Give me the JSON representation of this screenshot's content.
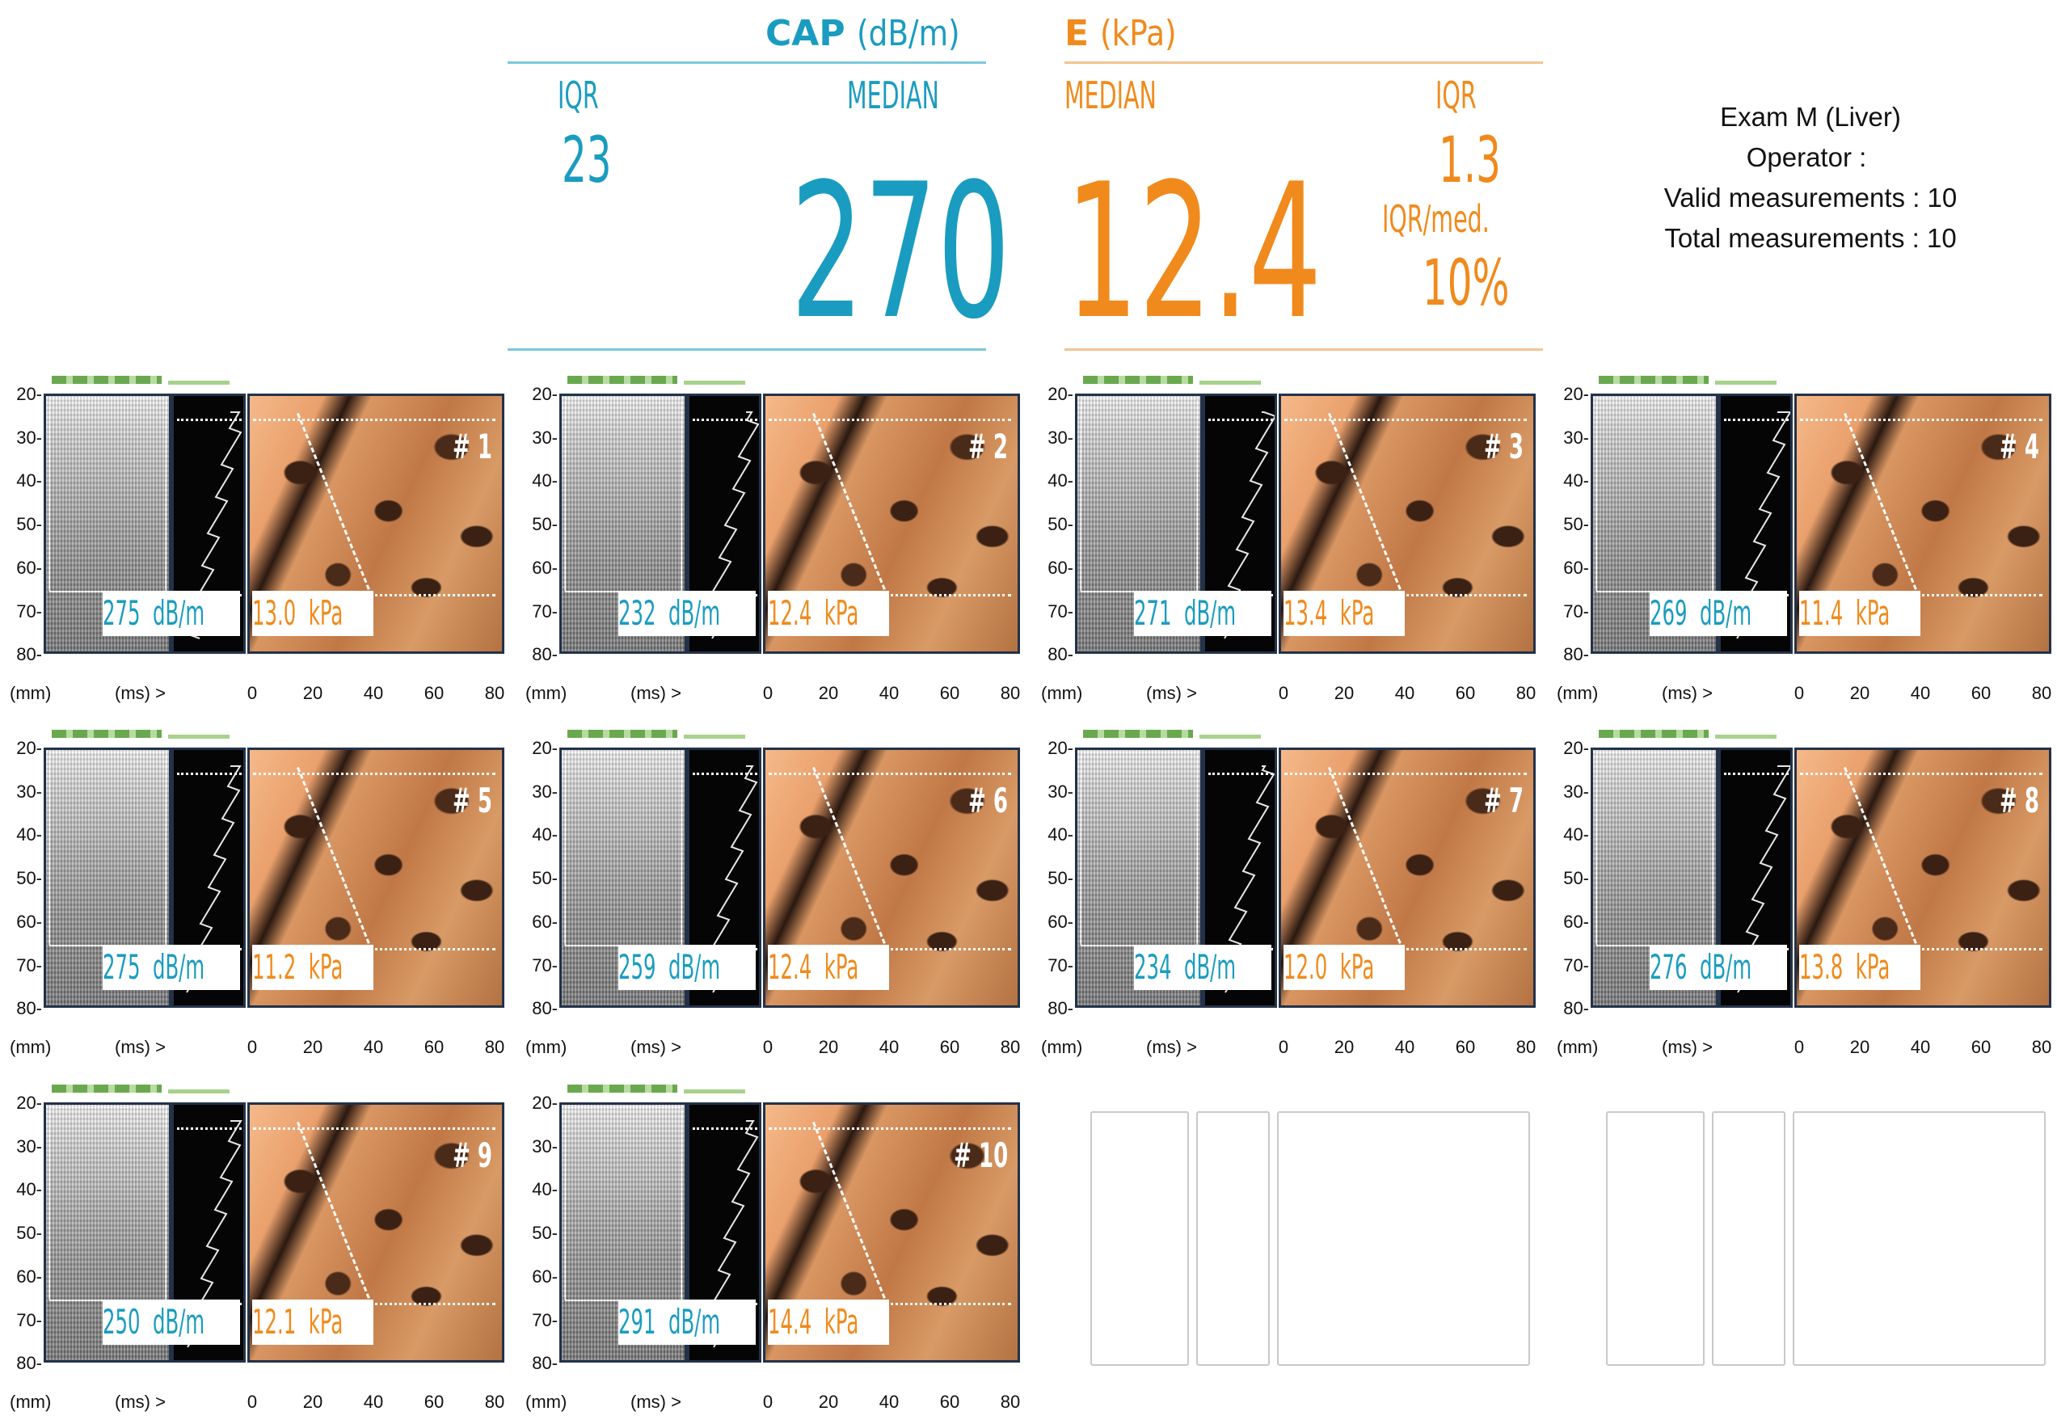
{
  "cap": {
    "title_main": "CAP",
    "title_unit": "(dB/m)",
    "iqr_label": "IQR",
    "median_label": "MEDIAN",
    "iqr_value": "23",
    "median_value": "270"
  },
  "e": {
    "title_main": "E",
    "title_unit": "(kPa)",
    "median_label": "MEDIAN",
    "iqr_label": "IQR",
    "median_value": "12.4",
    "iqr_value": "1.3",
    "ratio_label": "IQR/med.",
    "ratio_value": "10%"
  },
  "exam": {
    "title": "Exam M (Liver)",
    "operator_label": "Operator :",
    "valid_label": "Valid measurements : 10",
    "total_label": "Total measurements : 10"
  },
  "axis": {
    "y_ticks": [
      "20-",
      "30-",
      "40-",
      "50-",
      "60-",
      "70-",
      "80-"
    ],
    "y_unit": "(mm)",
    "x_unit": "(ms) >",
    "x_ticks": [
      "0",
      "20",
      "40",
      "60",
      "80"
    ]
  },
  "units": {
    "cap": "dB/m",
    "e": "kPa"
  },
  "measurements": [
    {
      "label": "# 1",
      "cap": "275",
      "e": "13.0"
    },
    {
      "label": "# 2",
      "cap": "232",
      "e": "12.4"
    },
    {
      "label": "# 3",
      "cap": "271",
      "e": "13.4"
    },
    {
      "label": "# 4",
      "cap": "269",
      "e": "11.4"
    },
    {
      "label": "# 5",
      "cap": "275",
      "e": "11.2"
    },
    {
      "label": "# 6",
      "cap": "259",
      "e": "12.4"
    },
    {
      "label": "# 7",
      "cap": "234",
      "e": "12.0"
    },
    {
      "label": "# 8",
      "cap": "276",
      "e": "13.8"
    },
    {
      "label": "# 9",
      "cap": "250",
      "e": "12.1"
    },
    {
      "label": "# 10",
      "cap": "291",
      "e": "14.4"
    }
  ],
  "colors": {
    "cap": "#1a9cc0",
    "e": "#f08a1c",
    "frame": "#233249",
    "bar": "#7fbf5a"
  }
}
